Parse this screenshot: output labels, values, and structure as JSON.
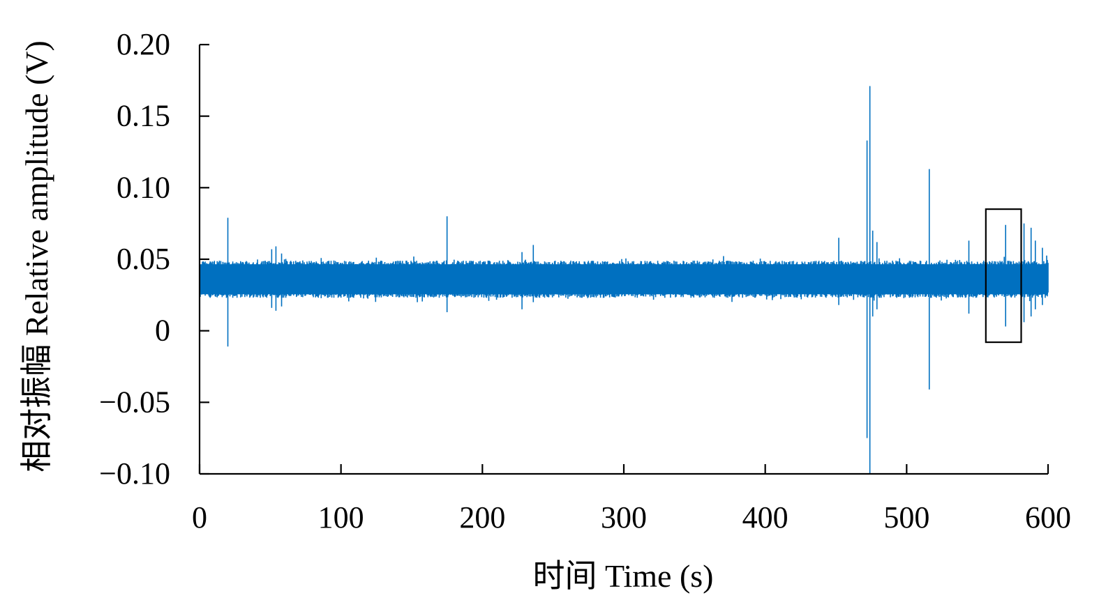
{
  "chart_data": {
    "type": "line",
    "title": "",
    "xlabel": "时间 Time (s)",
    "ylabel": "相对振幅 Relative amplitude (V)",
    "xlim": [
      0,
      600
    ],
    "ylim": [
      -0.1,
      0.2
    ],
    "x_ticks": [
      0,
      100,
      200,
      300,
      400,
      500,
      600
    ],
    "x_tick_labels": [
      "0",
      "100",
      "200",
      "300",
      "400",
      "500",
      "600"
    ],
    "y_ticks": [
      -0.1,
      -0.05,
      0,
      0.05,
      0.1,
      0.15,
      0.2
    ],
    "y_tick_labels": [
      "−0.10",
      "−0.05",
      "0",
      "0.05",
      "0.10",
      "0.15",
      "0.20"
    ],
    "grid": false,
    "legend": "none",
    "series_color": "#0070C0",
    "series": [
      {
        "baseline": 0.035,
        "noise_band": [
          0.023,
          0.049
        ],
        "spikes": [
          {
            "x": 20,
            "high": 0.079,
            "low": -0.011
          },
          {
            "x": 51,
            "high": 0.057,
            "low": 0.016
          },
          {
            "x": 54,
            "high": 0.059,
            "low": 0.014
          },
          {
            "x": 58,
            "high": 0.054,
            "low": 0.017
          },
          {
            "x": 175,
            "high": 0.08,
            "low": 0.013
          },
          {
            "x": 228,
            "high": 0.055,
            "low": 0.015
          },
          {
            "x": 236,
            "high": 0.06,
            "low": 0.02
          },
          {
            "x": 452,
            "high": 0.065,
            "low": 0.018
          },
          {
            "x": 472,
            "high": 0.133,
            "low": -0.075
          },
          {
            "x": 474,
            "high": 0.171,
            "low": -0.1
          },
          {
            "x": 476,
            "high": 0.07,
            "low": 0.01
          },
          {
            "x": 479,
            "high": 0.062,
            "low": 0.015
          },
          {
            "x": 516,
            "high": 0.113,
            "low": -0.041
          },
          {
            "x": 544,
            "high": 0.063,
            "low": 0.012
          },
          {
            "x": 570,
            "high": 0.074,
            "low": 0.003
          },
          {
            "x": 583,
            "high": 0.075,
            "low": 0.006
          },
          {
            "x": 588,
            "high": 0.072,
            "low": 0.01
          },
          {
            "x": 591,
            "high": 0.063,
            "low": 0.015
          },
          {
            "x": 596,
            "high": 0.058,
            "low": 0.018
          }
        ]
      }
    ],
    "annotation_box": {
      "x": [
        556,
        581
      ],
      "y": [
        -0.008,
        0.085
      ]
    }
  }
}
